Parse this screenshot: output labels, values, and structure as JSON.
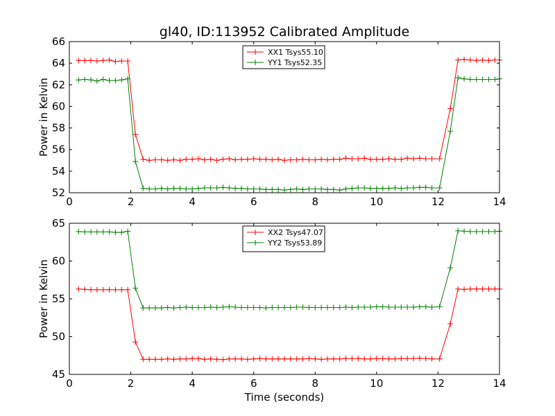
{
  "chart_data": [
    {
      "type": "line",
      "title": "gl40, ID:113952 Calibrated Amplitude",
      "xlabel": "",
      "ylabel": "Power in Kelvin",
      "xlim": [
        0,
        14
      ],
      "ylim": [
        52,
        66
      ],
      "xticks": [
        "0",
        "2",
        "4",
        "6",
        "8",
        "10",
        "12",
        "14"
      ],
      "yticks": [
        "52",
        "54",
        "56",
        "58",
        "60",
        "62",
        "64",
        "66"
      ],
      "legend_position": "top-center",
      "x": [
        0.3,
        0.5,
        0.7,
        0.9,
        1.1,
        1.3,
        1.5,
        1.7,
        1.9,
        2.15,
        2.4,
        2.6,
        2.8,
        3.0,
        3.2,
        3.4,
        3.6,
        3.8,
        4.0,
        4.2,
        4.4,
        4.6,
        4.8,
        5.0,
        5.2,
        5.4,
        5.6,
        5.8,
        6.0,
        6.2,
        6.4,
        6.6,
        6.8,
        7.0,
        7.2,
        7.4,
        7.6,
        7.8,
        8.0,
        8.2,
        8.4,
        8.6,
        8.8,
        9.0,
        9.2,
        9.4,
        9.6,
        9.8,
        10.0,
        10.2,
        10.4,
        10.6,
        10.8,
        11.0,
        11.2,
        11.4,
        11.6,
        11.8,
        12.05,
        12.4,
        12.65,
        12.85,
        13.05,
        13.25,
        13.45,
        13.65,
        13.85,
        14.0
      ],
      "series": [
        {
          "name": "XX1 Tsys55.10",
          "color": "#ff0000",
          "values": [
            64.25,
            64.25,
            64.25,
            64.2,
            64.25,
            64.3,
            64.15,
            64.2,
            64.2,
            57.4,
            55.1,
            55.0,
            55.05,
            55.05,
            55.0,
            55.05,
            55.0,
            55.1,
            55.1,
            55.15,
            55.05,
            55.1,
            55.0,
            55.1,
            55.15,
            55.05,
            55.1,
            55.1,
            55.15,
            55.1,
            55.1,
            55.05,
            55.1,
            55.0,
            55.05,
            55.05,
            55.1,
            55.05,
            55.05,
            55.1,
            55.05,
            55.1,
            55.1,
            55.2,
            55.15,
            55.15,
            55.2,
            55.1,
            55.1,
            55.1,
            55.15,
            55.1,
            55.1,
            55.2,
            55.15,
            55.2,
            55.15,
            55.15,
            55.15,
            59.8,
            64.3,
            64.35,
            64.3,
            64.25,
            64.3,
            64.25,
            64.3,
            64.3
          ]
        },
        {
          "name": "YY1 Tsys52.35",
          "color": "#008000",
          "values": [
            62.45,
            62.5,
            62.45,
            62.35,
            62.5,
            62.4,
            62.4,
            62.45,
            62.55,
            54.9,
            52.4,
            52.35,
            52.35,
            52.4,
            52.35,
            52.4,
            52.4,
            52.35,
            52.35,
            52.4,
            52.45,
            52.45,
            52.45,
            52.5,
            52.45,
            52.4,
            52.4,
            52.35,
            52.35,
            52.35,
            52.3,
            52.3,
            52.3,
            52.25,
            52.3,
            52.35,
            52.3,
            52.35,
            52.35,
            52.35,
            52.3,
            52.3,
            52.25,
            52.35,
            52.4,
            52.45,
            52.45,
            52.4,
            52.4,
            52.4,
            52.4,
            52.45,
            52.4,
            52.45,
            52.45,
            52.5,
            52.5,
            52.45,
            52.45,
            57.7,
            62.65,
            62.55,
            62.5,
            62.5,
            62.5,
            62.5,
            62.5,
            62.55
          ]
        }
      ]
    },
    {
      "type": "line",
      "title": "",
      "xlabel": "Time (seconds)",
      "ylabel": "Power in Kelvin",
      "xlim": [
        0,
        14
      ],
      "ylim": [
        45,
        65
      ],
      "xticks": [
        "0",
        "2",
        "4",
        "6",
        "8",
        "10",
        "12",
        "14"
      ],
      "yticks": [
        "45",
        "50",
        "55",
        "60",
        "65"
      ],
      "legend_position": "top-center",
      "x": [
        0.3,
        0.5,
        0.7,
        0.9,
        1.1,
        1.3,
        1.5,
        1.7,
        1.9,
        2.15,
        2.4,
        2.6,
        2.8,
        3.0,
        3.2,
        3.4,
        3.6,
        3.8,
        4.0,
        4.2,
        4.4,
        4.6,
        4.8,
        5.0,
        5.2,
        5.4,
        5.6,
        5.8,
        6.0,
        6.2,
        6.4,
        6.6,
        6.8,
        7.0,
        7.2,
        7.4,
        7.6,
        7.8,
        8.0,
        8.2,
        8.4,
        8.6,
        8.8,
        9.0,
        9.2,
        9.4,
        9.6,
        9.8,
        10.0,
        10.2,
        10.4,
        10.6,
        10.8,
        11.0,
        11.2,
        11.4,
        11.6,
        11.8,
        12.05,
        12.4,
        12.65,
        12.85,
        13.05,
        13.25,
        13.45,
        13.65,
        13.85,
        14.0
      ],
      "series": [
        {
          "name": "XX2 Tsys47.07",
          "color": "#ff0000",
          "values": [
            56.3,
            56.25,
            56.2,
            56.2,
            56.2,
            56.2,
            56.2,
            56.2,
            56.2,
            49.3,
            47.0,
            47.0,
            47.0,
            47.0,
            47.05,
            47.0,
            47.05,
            47.05,
            47.1,
            47.1,
            47.0,
            47.05,
            47.0,
            46.95,
            47.05,
            47.05,
            47.05,
            47.0,
            47.05,
            47.1,
            47.05,
            47.05,
            47.05,
            47.05,
            47.05,
            47.05,
            47.05,
            47.1,
            47.05,
            47.0,
            47.05,
            47.05,
            47.05,
            47.1,
            47.1,
            47.1,
            47.05,
            47.05,
            47.1,
            47.1,
            47.05,
            47.05,
            47.1,
            47.1,
            47.1,
            47.15,
            47.1,
            47.05,
            47.05,
            51.7,
            56.3,
            56.25,
            56.3,
            56.3,
            56.3,
            56.3,
            56.3,
            56.3
          ]
        },
        {
          "name": "YY2 Tsys53.89",
          "color": "#008000",
          "values": [
            63.9,
            63.85,
            63.85,
            63.85,
            63.85,
            63.85,
            63.8,
            63.8,
            63.95,
            56.4,
            53.8,
            53.8,
            53.8,
            53.8,
            53.85,
            53.8,
            53.85,
            53.9,
            53.85,
            53.85,
            53.85,
            53.9,
            53.85,
            53.9,
            53.95,
            53.9,
            53.85,
            53.85,
            53.85,
            53.85,
            53.8,
            53.85,
            53.85,
            53.85,
            53.85,
            53.9,
            53.9,
            53.85,
            53.85,
            53.85,
            53.85,
            53.85,
            53.85,
            53.9,
            53.85,
            53.9,
            53.9,
            53.9,
            53.95,
            53.95,
            53.9,
            53.9,
            53.9,
            53.9,
            53.9,
            53.95,
            53.95,
            53.9,
            53.95,
            59.1,
            64.0,
            63.95,
            63.9,
            63.9,
            63.9,
            63.9,
            63.9,
            63.95
          ]
        }
      ]
    }
  ]
}
